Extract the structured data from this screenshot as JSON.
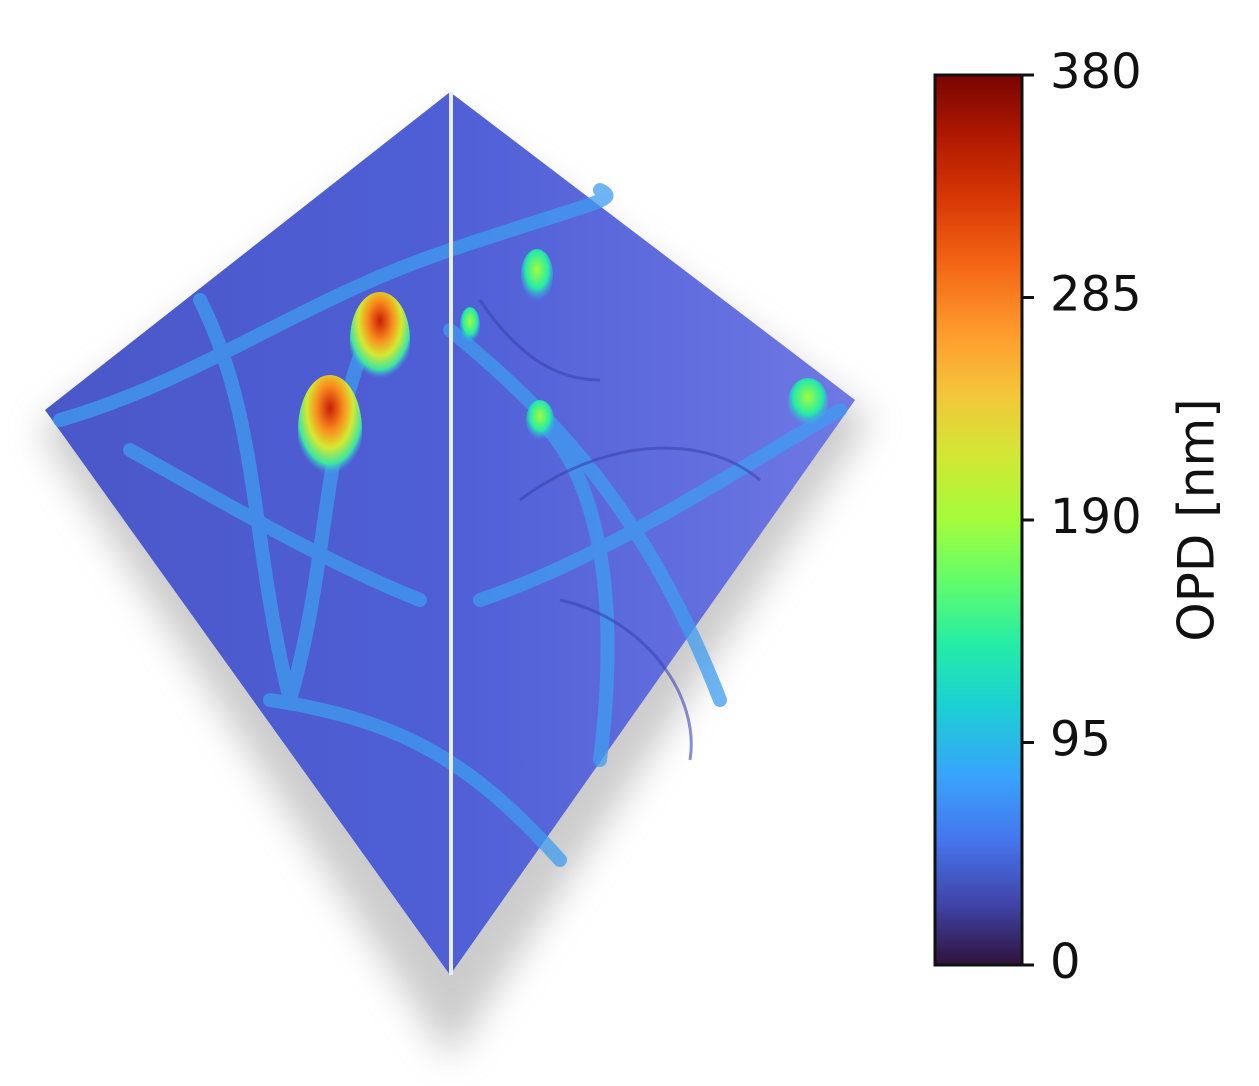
{
  "chart_data": {
    "type": "surface",
    "colormap": "turbo",
    "colorbar_label": "OPD [nm]",
    "clim": [
      0,
      380
    ],
    "cticks": [
      0,
      95,
      190,
      285,
      380
    ]
  }
}
